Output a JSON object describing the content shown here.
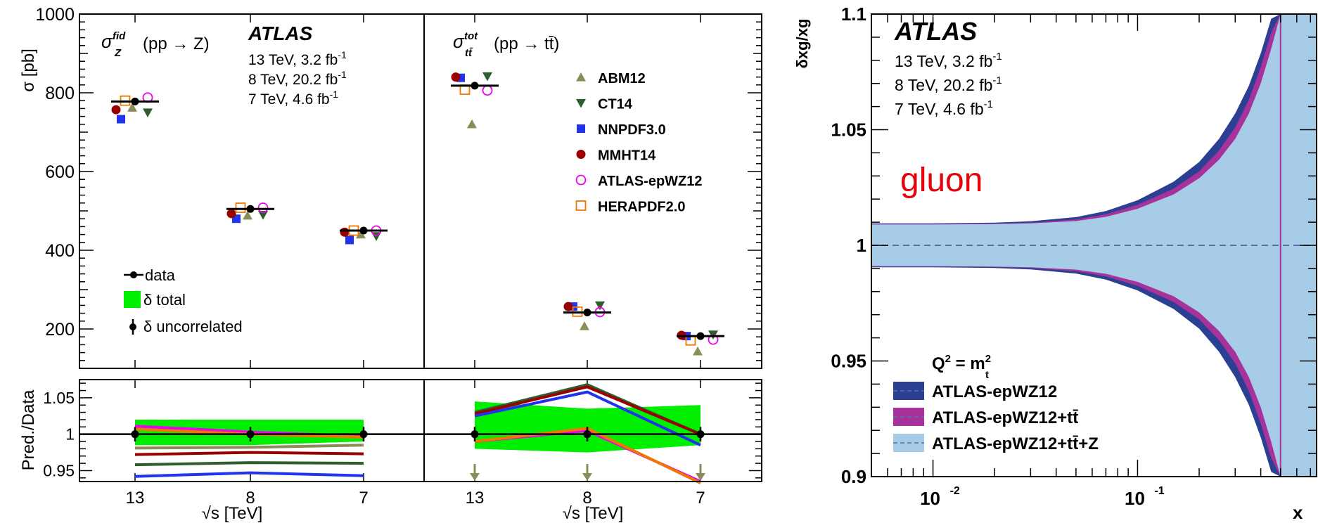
{
  "chart_data": [
    {
      "type": "scatter",
      "panel": "sigma-vs-sqrt-s",
      "ylabel": "σ [pb]",
      "ylim": [
        100,
        1000
      ],
      "yticks": [
        "200",
        "400",
        "600",
        "800",
        "1000"
      ],
      "xlabel": "√s [TeV]",
      "categories": [
        "13",
        "8",
        "7"
      ],
      "atlas": {
        "label": "ATLAS",
        "lumi": [
          "13 TeV, 3.2 fb",
          "8 TeV, 20.2 fb",
          "7 TeV, 4.6 fb"
        ],
        "lumi_sup": "-1"
      },
      "left_title": {
        "sym": "σ",
        "sup": "fid",
        "sub": "Z",
        "proc": "(pp → Z)"
      },
      "right_title": {
        "sym": "σ",
        "sup": "tot",
        "sub": "tt̄",
        "proc": "(pp → tt̄)"
      },
      "data_legend": {
        "data": "data",
        "total": "δ total",
        "uncorrelated": "δ uncorrelated"
      },
      "pdf_legend": [
        "ABM12",
        "CT14",
        "NNPDF3.0",
        "MMHT14",
        "ATLAS-epWZ12",
        "HERAPDF2.0"
      ],
      "colors": {
        "ABM12": "#8c8c5a",
        "CT14": "#2e5e2e",
        "NNPDF3.0": "#2233ee",
        "MMHT14": "#990000",
        "ATLAS-epWZ12": "#ee00ee",
        "HERAPDF2.0": "#ee7700",
        "total_band": "#00ee00"
      },
      "series": [
        {
          "name": "data",
          "panel": "Z",
          "x": [
            "13",
            "8",
            "7"
          ],
          "y": [
            778,
            505,
            450
          ]
        },
        {
          "name": "data",
          "panel": "tt̄",
          "x": [
            "13",
            "8",
            "7"
          ],
          "y": [
            818,
            242,
            182
          ]
        },
        {
          "name": "ABM12",
          "panel": "Z",
          "y": [
            762,
            488,
            440
          ]
        },
        {
          "name": "CT14",
          "panel": "Z",
          "y": [
            750,
            490,
            436
          ]
        },
        {
          "name": "NNPDF3.0",
          "panel": "Z",
          "y": [
            733,
            480,
            426
          ]
        },
        {
          "name": "MMHT14",
          "panel": "Z",
          "y": [
            757,
            493,
            446
          ]
        },
        {
          "name": "ATLAS-epWZ12",
          "panel": "Z",
          "y": [
            788,
            508,
            450
          ]
        },
        {
          "name": "HERAPDF2.0",
          "panel": "Z",
          "y": [
            780,
            508,
            450
          ]
        },
        {
          "name": "ABM12",
          "panel": "tt̄",
          "y": [
            720,
            207,
            143
          ]
        },
        {
          "name": "CT14",
          "panel": "tt̄",
          "y": [
            842,
            260,
            186
          ]
        },
        {
          "name": "NNPDF3.0",
          "panel": "tt̄",
          "y": [
            838,
            257,
            182
          ]
        },
        {
          "name": "MMHT14",
          "panel": "tt̄",
          "y": [
            840,
            257,
            184
          ]
        },
        {
          "name": "ATLAS-epWZ12",
          "panel": "tt̄",
          "y": [
            806,
            243,
            173
          ]
        },
        {
          "name": "HERAPDF2.0",
          "panel": "tt̄",
          "y": [
            808,
            244,
            171
          ]
        }
      ]
    },
    {
      "type": "line",
      "panel": "ratio",
      "ylabel": "Pred./Data",
      "ylim": [
        0.935,
        1.075
      ],
      "yticks": [
        "0.95",
        "1",
        "1.05"
      ],
      "xlabel": "√s [TeV]",
      "categories": [
        "13",
        "8",
        "7"
      ],
      "series": [
        {
          "name": "ABM12",
          "panel": "Z",
          "y": [
            0.981,
            0.982,
            0.985
          ]
        },
        {
          "name": "CT14",
          "panel": "Z",
          "y": [
            0.958,
            0.961,
            0.96
          ]
        },
        {
          "name": "NNPDF3.0",
          "panel": "Z",
          "y": [
            0.942,
            0.947,
            0.943
          ]
        },
        {
          "name": "MMHT14",
          "panel": "Z",
          "y": [
            0.972,
            0.975,
            0.973
          ]
        },
        {
          "name": "ATLAS-epWZ12",
          "panel": "Z",
          "y": [
            1.011,
            1.003,
            0.997
          ]
        },
        {
          "name": "HERAPDF2.0",
          "panel": "Z",
          "y": [
            1.007,
            1.0,
            0.996
          ]
        },
        {
          "name": "CT14",
          "panel": "tt̄",
          "y": [
            1.03,
            1.068,
            1.0
          ]
        },
        {
          "name": "MMHT14",
          "panel": "tt̄",
          "y": [
            1.028,
            1.065,
            1.0
          ]
        },
        {
          "name": "NNPDF3.0",
          "panel": "tt̄",
          "y": [
            1.025,
            1.058,
            0.985
          ]
        },
        {
          "name": "ATLAS-epWZ12",
          "panel": "tt̄",
          "y": [
            0.99,
            1.005,
            0.935
          ]
        },
        {
          "name": "HERAPDF2.0",
          "panel": "tt̄",
          "y": [
            0.99,
            1.008,
            0.933
          ]
        }
      ],
      "total_band": {
        "Z": {
          "lo": [
            0.985,
            0.985,
            0.99
          ],
          "hi": [
            1.02,
            1.02,
            1.02
          ]
        },
        "tt̄": {
          "lo": [
            0.98,
            0.975,
            0.985
          ],
          "hi": [
            1.045,
            1.035,
            1.04
          ]
        }
      },
      "ABM12_off_scale": "below"
    },
    {
      "type": "area",
      "panel": "gluon-uncertainty",
      "xlabel": "x",
      "ylabel": "δxg/xg",
      "xscale": "log",
      "xlim": [
        0.005,
        0.75
      ],
      "ylim": [
        0.9,
        1.1
      ],
      "xticks": [
        "10",
        "10"
      ],
      "xtick_exp": [
        "-2",
        "-1"
      ],
      "yticks": [
        "0.9",
        "0.95",
        "1",
        "1.05",
        "1.1"
      ],
      "grid": false,
      "atlas": {
        "label": "ATLAS",
        "lumi": [
          "13 TeV, 3.2 fb",
          "8 TeV, 20.2 fb",
          "7 TeV, 4.6 fb"
        ],
        "lumi_sup": "-1"
      },
      "annotation": "gluon",
      "legend_title": {
        "q": "Q",
        "q_sup": "2",
        "eq": " = m",
        "m_sup": "2",
        "m_sub": "t"
      },
      "legend_position": "bottom-left",
      "colors": {
        "ATLAS-epWZ12": "#2b3f93",
        "ATLAS-epWZ12+tt̄": "#a8329c",
        "ATLAS-epWZ12+tt̄+Z": "#a6cce8"
      },
      "x": [
        0.005,
        0.01,
        0.02,
        0.03,
        0.05,
        0.07,
        0.1,
        0.15,
        0.2,
        0.25,
        0.3,
        0.35,
        0.4,
        0.45,
        0.5
      ],
      "series": [
        {
          "name": "ATLAS-epWZ12",
          "half_width": [
            0.0095,
            0.0095,
            0.0098,
            0.0104,
            0.0122,
            0.0148,
            0.0195,
            0.0275,
            0.036,
            0.046,
            0.057,
            0.069,
            0.083,
            0.098,
            0.115
          ]
        },
        {
          "name": "ATLAS-epWZ12+tt̄",
          "half_width": [
            0.0092,
            0.0092,
            0.0094,
            0.0098,
            0.0112,
            0.0134,
            0.0175,
            0.0245,
            0.032,
            0.041,
            0.051,
            0.063,
            0.077,
            0.092,
            0.11
          ]
        },
        {
          "name": "ATLAS-epWZ12+tt̄+Z",
          "half_width": [
            0.009,
            0.009,
            0.0092,
            0.0095,
            0.0105,
            0.0123,
            0.0158,
            0.022,
            0.029,
            0.037,
            0.046,
            0.057,
            0.07,
            0.085,
            0.105
          ]
        }
      ],
      "legend": [
        {
          "name": "ATLAS-epWZ12",
          "text": "ATLAS-epWZ12"
        },
        {
          "name": "ATLAS-epWZ12+tt̄",
          "text": "ATLAS-epWZ12+tt̄"
        },
        {
          "name": "ATLAS-epWZ12+tt̄+Z",
          "text": "ATLAS-epWZ12+tt̄+Z"
        }
      ]
    }
  ]
}
